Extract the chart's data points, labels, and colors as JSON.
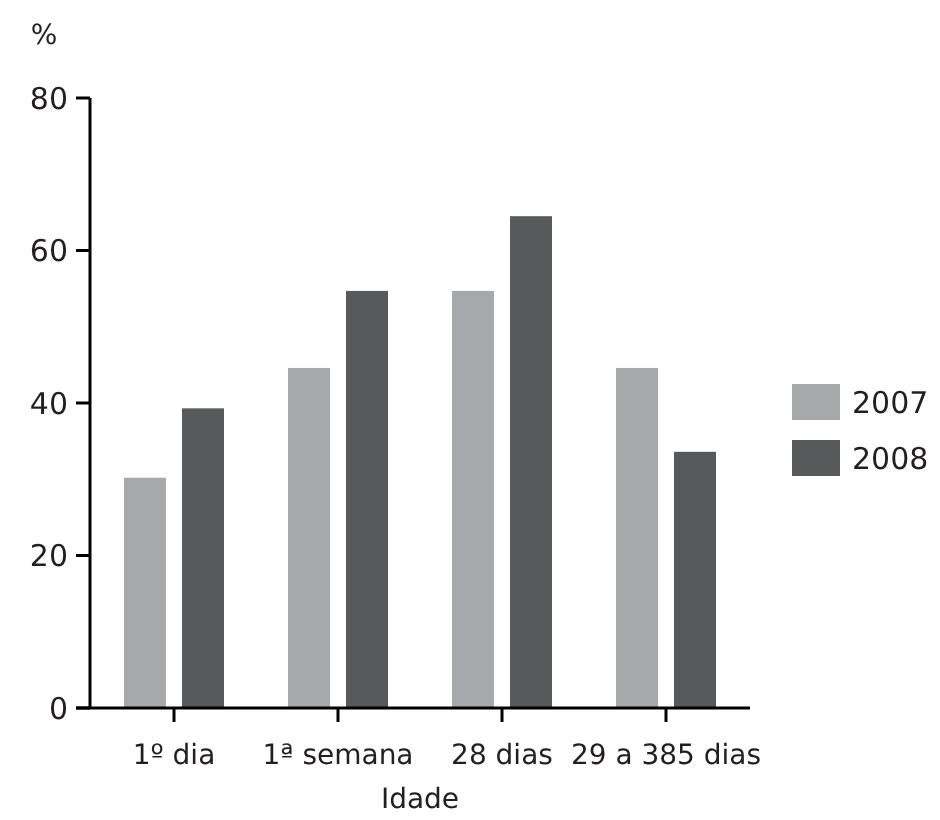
{
  "chart_data": {
    "type": "bar",
    "ylabel": "%",
    "xlabel": "Idade",
    "categories": [
      "1º dia",
      "1ª semana",
      "28 dias",
      "29 a 385 dias"
    ],
    "series": [
      {
        "name": "2007",
        "color": "#a7a8ab",
        "values": [
          30.2,
          44.6,
          54.7,
          44.6
        ]
      },
      {
        "name": "2008",
        "color": "#58595b",
        "values": [
          39.3,
          54.7,
          64.5,
          33.6
        ]
      }
    ],
    "ylim": [
      0,
      80
    ],
    "yticks": [
      0,
      20,
      40,
      60,
      80
    ],
    "grid": false,
    "legend": "right"
  }
}
